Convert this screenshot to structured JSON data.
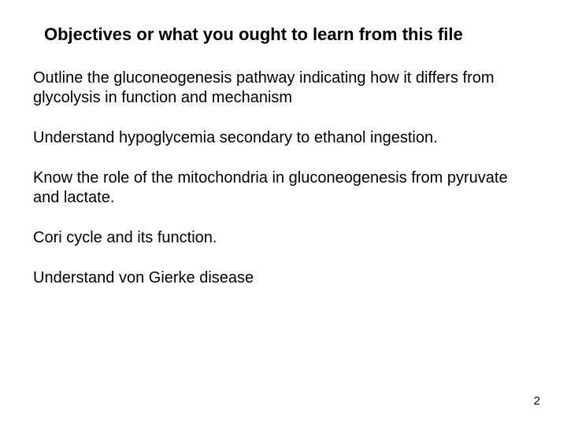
{
  "slide": {
    "title": "Objectives or what you ought to learn from this file",
    "items": [
      "Outline the gluconeogenesis pathway indicating how it differs from glycolysis in function and mechanism",
      "Understand hypoglycemia secondary to ethanol ingestion.",
      "Know the role of the mitochondria in gluconeogenesis from pyruvate and lactate.",
      "Cori cycle and its function.",
      "Understand von Gierke disease"
    ],
    "page_number": "2",
    "background_color": "#ffffff",
    "text_color": "#000000",
    "title_fontsize": 22,
    "body_fontsize": 20,
    "font_family": "Arial"
  }
}
